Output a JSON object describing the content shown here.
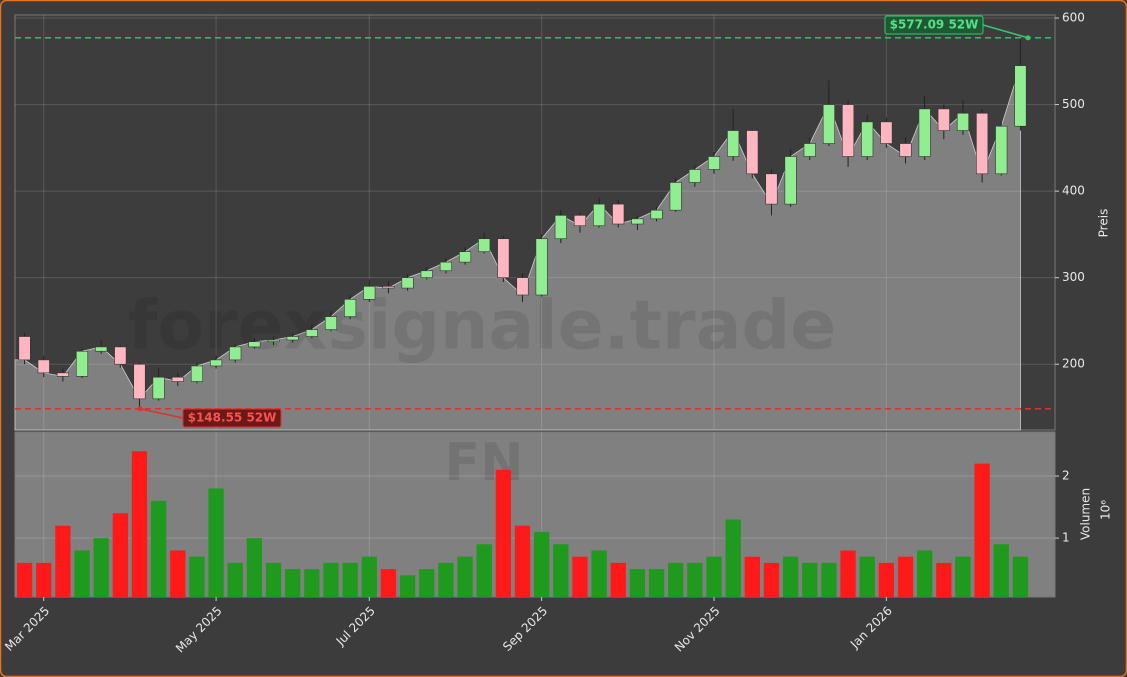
{
  "chart_data": {
    "type": "candlestick",
    "watermark": "forexsignale.trade",
    "symbol": "FN",
    "categories": [
      null,
      "Mar 2025",
      null,
      null,
      null,
      null,
      null,
      null,
      null,
      null,
      "May 2025",
      null,
      null,
      null,
      null,
      null,
      null,
      null,
      "Jul 2025",
      null,
      null,
      null,
      null,
      null,
      null,
      null,
      null,
      "Sep 2025",
      null,
      null,
      null,
      null,
      null,
      null,
      null,
      null,
      "Nov 2025",
      null,
      null,
      null,
      null,
      null,
      null,
      null,
      null,
      "Jan 2026",
      null,
      null,
      null,
      null,
      null,
      null,
      null
    ],
    "open": [
      232,
      205,
      190,
      186,
      215,
      220,
      200,
      160,
      185,
      180,
      198,
      205,
      220,
      226,
      228,
      232,
      240,
      255,
      275,
      290,
      288,
      300,
      308,
      318,
      330,
      345,
      300,
      280,
      345,
      372,
      360,
      385,
      362,
      368,
      378,
      410,
      425,
      440,
      470,
      420,
      385,
      440,
      455,
      500,
      440,
      480,
      455,
      440,
      495,
      470,
      490,
      420,
      475
    ],
    "high": [
      236,
      210,
      195,
      218,
      228,
      222,
      202,
      195,
      190,
      202,
      210,
      224,
      230,
      232,
      236,
      245,
      262,
      280,
      298,
      296,
      304,
      312,
      322,
      335,
      352,
      348,
      305,
      350,
      378,
      375,
      392,
      390,
      372,
      382,
      415,
      430,
      445,
      495,
      472,
      425,
      448,
      462,
      528,
      505,
      488,
      485,
      462,
      510,
      500,
      505,
      495,
      480,
      577.09
    ],
    "low": [
      200,
      185,
      180,
      184,
      212,
      196,
      148.55,
      158,
      175,
      178,
      195,
      202,
      218,
      222,
      225,
      230,
      238,
      252,
      272,
      282,
      285,
      298,
      305,
      315,
      328,
      295,
      272,
      278,
      340,
      352,
      358,
      358,
      355,
      365,
      376,
      405,
      420,
      435,
      415,
      372,
      382,
      436,
      452,
      428,
      436,
      450,
      432,
      436,
      460,
      465,
      410,
      418,
      470
    ],
    "close": [
      205,
      190,
      186,
      215,
      220,
      200,
      160,
      185,
      180,
      198,
      205,
      220,
      226,
      228,
      232,
      240,
      255,
      275,
      290,
      288,
      300,
      308,
      318,
      330,
      345,
      300,
      280,
      345,
      372,
      360,
      385,
      362,
      368,
      378,
      410,
      425,
      440,
      470,
      420,
      385,
      440,
      455,
      500,
      440,
      480,
      455,
      440,
      495,
      470,
      490,
      420,
      475,
      545
    ],
    "up_color": "#90ee90",
    "down_color": "#ffb6c1",
    "area_color": "#808080",
    "ylim": [
      124,
      603.5
    ],
    "yticks": [
      200,
      300,
      400,
      500,
      600
    ],
    "ylabel": "Preis",
    "grid": true,
    "high_line": {
      "value": 577.09,
      "label": "$577.09 52W",
      "color": "#2ecc71"
    },
    "low_line": {
      "value": 148.55,
      "label": "$148.55 52W",
      "color": "#e03030"
    },
    "volume": {
      "values": [
        0.6,
        0.6,
        1.2,
        0.8,
        1.0,
        1.4,
        2.4,
        1.6,
        0.8,
        0.7,
        1.8,
        0.6,
        1.0,
        0.6,
        0.5,
        0.5,
        0.6,
        0.6,
        0.7,
        0.5,
        0.4,
        0.5,
        0.6,
        0.7,
        0.9,
        2.1,
        1.2,
        1.1,
        0.9,
        0.7,
        0.8,
        0.6,
        0.5,
        0.5,
        0.6,
        0.6,
        0.7,
        1.3,
        0.7,
        0.6,
        0.7,
        0.6,
        0.6,
        0.8,
        0.7,
        0.6,
        0.7,
        0.8,
        0.6,
        0.7,
        2.2,
        0.9,
        0.7
      ],
      "up_color": "#1f9a1f",
      "down_color": "#ff1a1a",
      "ylim": [
        0.05,
        2.71
      ],
      "yticks": [
        1,
        2
      ],
      "ylabel": "Volumen",
      "scale_label": "10⁶"
    }
  }
}
